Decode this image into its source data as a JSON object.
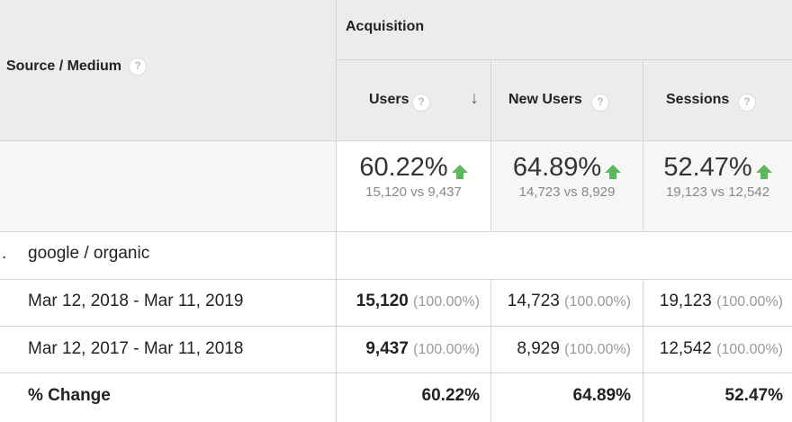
{
  "header": {
    "source_medium": "Source / Medium",
    "acquisition": "Acquisition",
    "help_glyph": "?",
    "sort_glyph": "↓",
    "columns": [
      {
        "label": "Users"
      },
      {
        "label": "New Users"
      },
      {
        "label": "Sessions"
      }
    ]
  },
  "summary": [
    {
      "pct": "60.22%",
      "vs": "15,120 vs 9,437"
    },
    {
      "pct": "64.89%",
      "vs": "14,723 vs 8,929"
    },
    {
      "pct": "52.47%",
      "vs": "19,123 vs 12,542"
    }
  ],
  "group": {
    "index": ".",
    "label": "google / organic"
  },
  "rows": [
    {
      "label": "Mar 12, 2018 - Mar 11, 2019",
      "cells": [
        {
          "value": "15,120",
          "pct": "(100.00%)"
        },
        {
          "value": "14,723",
          "pct": "(100.00%)"
        },
        {
          "value": "19,123",
          "pct": "(100.00%)"
        }
      ]
    },
    {
      "label": "Mar 12, 2017 - Mar 11, 2018",
      "cells": [
        {
          "value": "9,437",
          "pct": "(100.00%)"
        },
        {
          "value": "8,929",
          "pct": "(100.00%)"
        },
        {
          "value": "12,542",
          "pct": "(100.00%)"
        }
      ]
    }
  ],
  "change": {
    "label": "% Change",
    "values": [
      "60.22%",
      "64.89%",
      "52.47%"
    ]
  },
  "colors": {
    "header_bg": "#ececec",
    "up_arrow": "#5cb85c"
  }
}
